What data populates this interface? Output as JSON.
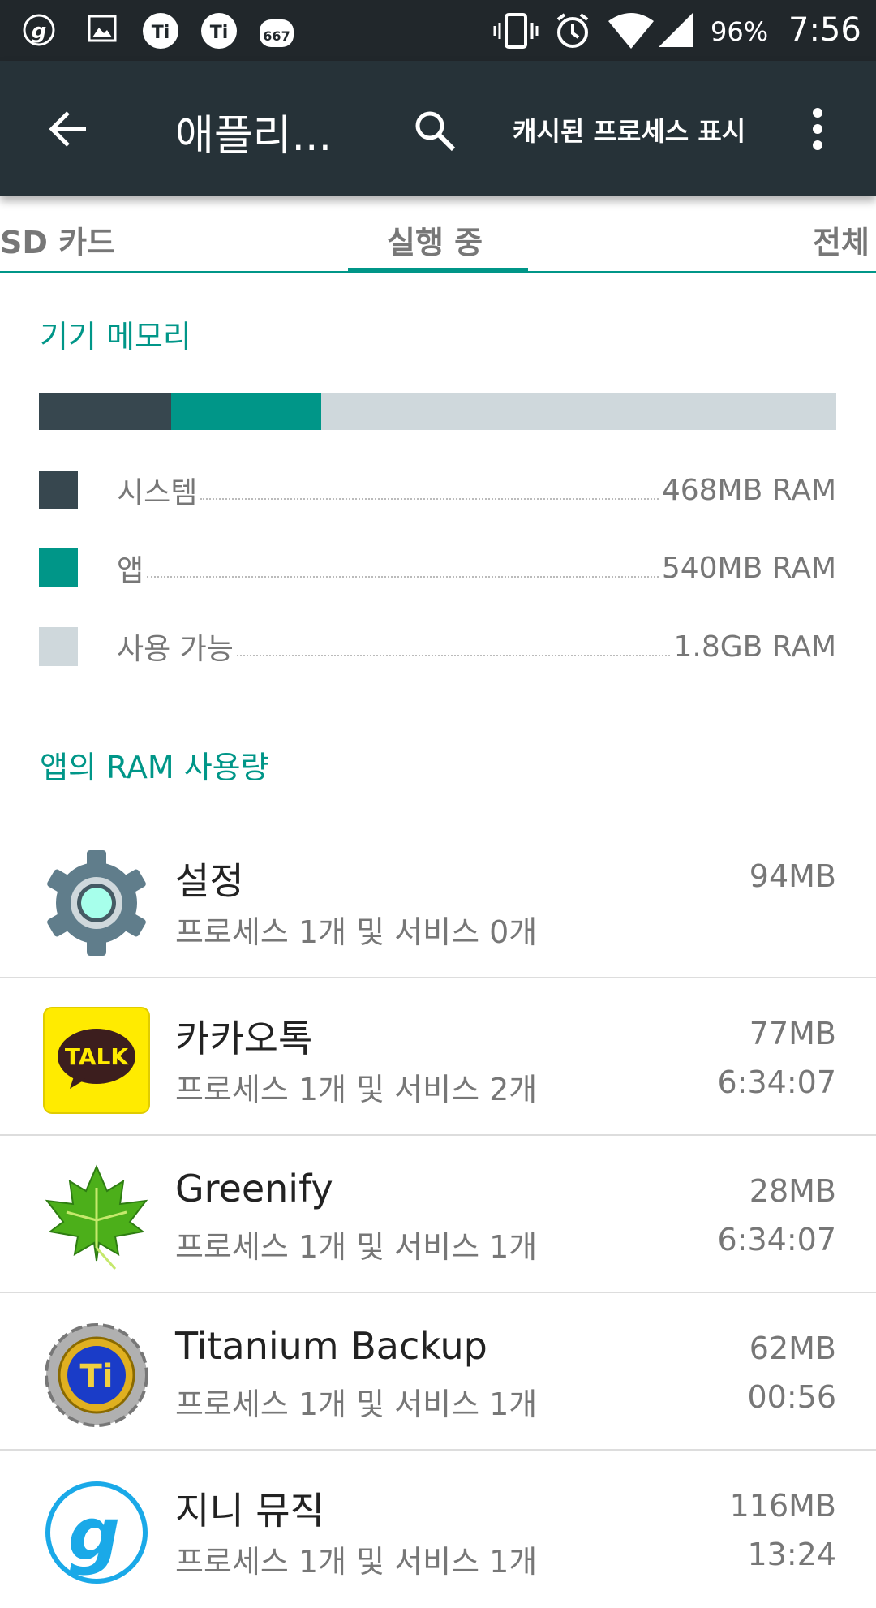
{
  "status_bar": {
    "battery": "96%",
    "time": "7:56",
    "notification_badge": "667"
  },
  "toolbar": {
    "title": "애플리...",
    "cached_processes": "캐시된 프로세스 표시"
  },
  "tabs": [
    {
      "label": "SD 카드"
    },
    {
      "label": "실행 중",
      "active": true
    },
    {
      "label": "전체"
    }
  ],
  "device_memory": {
    "heading": "기기 메모리",
    "segments": [
      {
        "label": "시스템",
        "value": "468MB RAM",
        "color": "#37474f"
      },
      {
        "label": "앱",
        "value": "540MB RAM",
        "color": "#009688"
      },
      {
        "label": "사용 가능",
        "value": "1.8GB RAM",
        "color": "#cfd8dc"
      }
    ]
  },
  "app_ram": {
    "heading": "앱의 RAM 사용량",
    "apps": [
      {
        "name": "설정",
        "detail": "프로세스 1개 및 서비스 0개",
        "size": "94MB",
        "time": ""
      },
      {
        "name": "카카오톡",
        "detail": "프로세스 1개 및 서비스 2개",
        "size": "77MB",
        "time": "6:34:07",
        "icon_text": "TALK"
      },
      {
        "name": "Greenify",
        "detail": "프로세스 1개 및 서비스 1개",
        "size": "28MB",
        "time": "6:34:07"
      },
      {
        "name": "Titanium Backup",
        "detail": "프로세스 1개 및 서비스 1개",
        "size": "62MB",
        "time": "00:56"
      },
      {
        "name": "지니 뮤직",
        "detail": "프로세스 1개 및 서비스 1개",
        "size": "116MB",
        "time": "13:24"
      }
    ]
  }
}
